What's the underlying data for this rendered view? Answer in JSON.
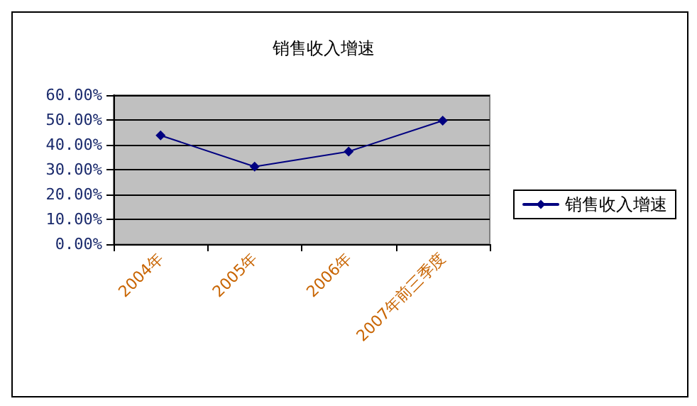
{
  "chart_data": {
    "type": "line",
    "title": "销售收入增速",
    "categories": [
      "2004年",
      "2005年",
      "2006年",
      "2007年前三季度"
    ],
    "series": [
      {
        "name": "销售收入增速",
        "color": "#000080",
        "values": [
          43.8,
          31.2,
          37.3,
          49.7
        ]
      }
    ],
    "ylim": [
      0,
      60
    ],
    "yticks": [
      {
        "value": 0,
        "label": "0.00%"
      },
      {
        "value": 10,
        "label": "10.00%"
      },
      {
        "value": 20,
        "label": "20.00%"
      },
      {
        "value": 30,
        "label": "30.00%"
      },
      {
        "value": 40,
        "label": "40.00%"
      },
      {
        "value": 50,
        "label": "50.00%"
      },
      {
        "value": 60,
        "label": "60.00%"
      }
    ],
    "grid": "y",
    "legend": "right",
    "marker": "diamond",
    "line_style": "solid"
  }
}
